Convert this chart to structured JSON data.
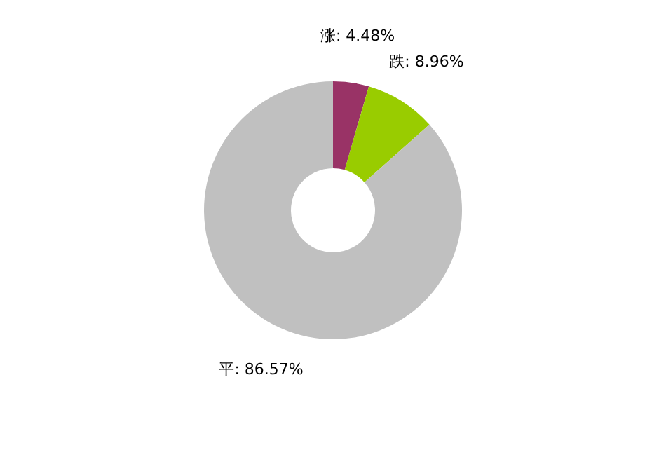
{
  "chart_data": {
    "type": "donut",
    "categories": [
      "涨",
      "跌",
      "平"
    ],
    "values": [
      4.48,
      8.96,
      86.57
    ],
    "colors": [
      "#993366",
      "#99cc00",
      "#c0c0c0"
    ],
    "value_labels": [
      "4.48%",
      "8.96%",
      "86.57%"
    ],
    "legend": false
  }
}
